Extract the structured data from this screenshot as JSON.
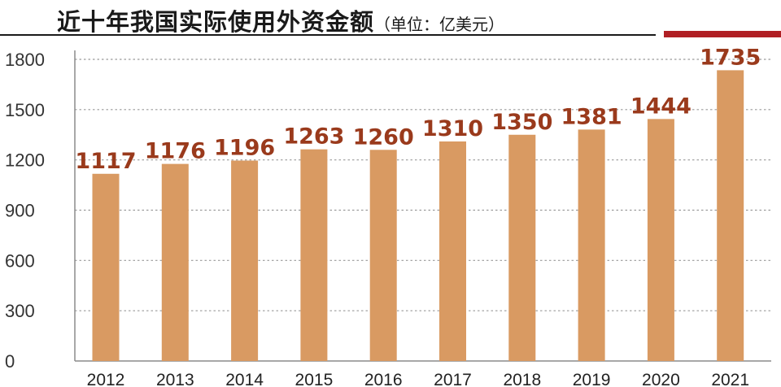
{
  "header": {
    "title": "近十年我国实际使用外资金额",
    "unit": "（单位：亿美元）",
    "rule_color": "#1a1a1a",
    "accent_color": "#b01f24"
  },
  "chart_data": {
    "type": "bar",
    "title": "近十年我国实际使用外资金额",
    "unit": "单位：亿美元",
    "categories": [
      "2012",
      "2013",
      "2014",
      "2015",
      "2016",
      "2017",
      "2018",
      "2019",
      "2020",
      "2021"
    ],
    "values": [
      1117,
      1176,
      1196,
      1263,
      1260,
      1310,
      1350,
      1381,
      1444,
      1735
    ],
    "ylim": [
      0,
      1800
    ],
    "yticks": [
      0,
      300,
      600,
      900,
      1200,
      1500,
      1800
    ],
    "grid": true,
    "bar_color": "#d99a62",
    "label_color": "#9a3a1c",
    "legend": "none"
  }
}
